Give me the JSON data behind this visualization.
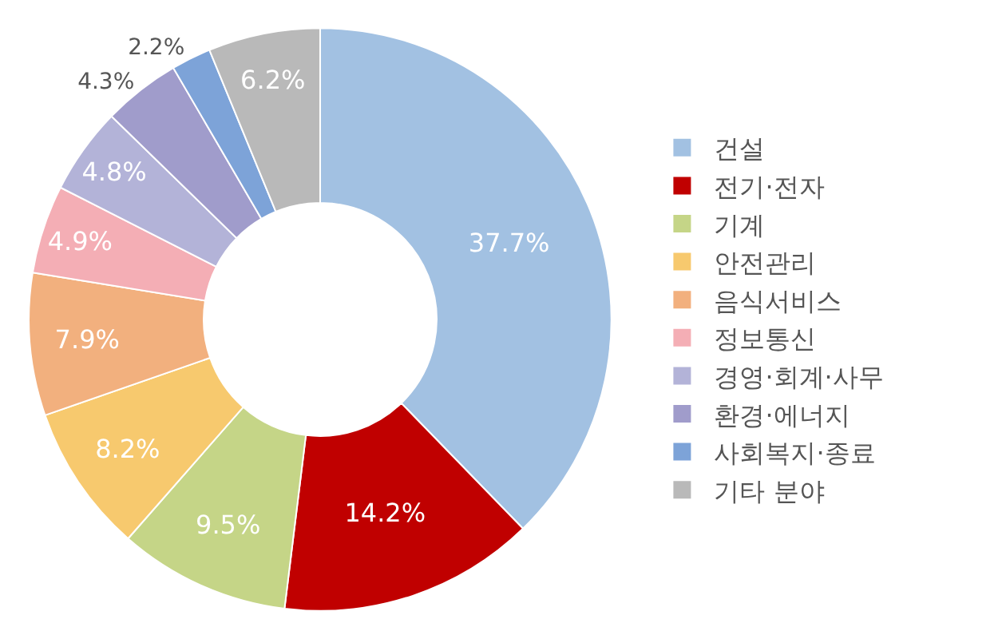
{
  "chart_data": {
    "type": "donut",
    "categories": [
      "건설",
      "전기·전자",
      "기계",
      "안전관리",
      "음식서비스",
      "정보통신",
      "경영·회계·사무",
      "환경·에너지",
      "사회복지·종료",
      "기타 분야"
    ],
    "values": [
      37.7,
      14.2,
      9.5,
      8.2,
      7.9,
      4.9,
      4.8,
      4.3,
      2.2,
      6.2
    ],
    "value_labels": [
      "37.7%",
      "14.2%",
      "9.5%",
      "8.2%",
      "7.9%",
      "4.9%",
      "4.8%",
      "4.3%",
      "2.2%",
      "6.2%"
    ],
    "colors": [
      "#a2c1e2",
      "#c00000",
      "#c5d587",
      "#f7c96e",
      "#f2b07e",
      "#f4aeb5",
      "#b3b3d8",
      "#a09ccb",
      "#7da3d8",
      "#b9b9b9"
    ],
    "legend": "right"
  }
}
